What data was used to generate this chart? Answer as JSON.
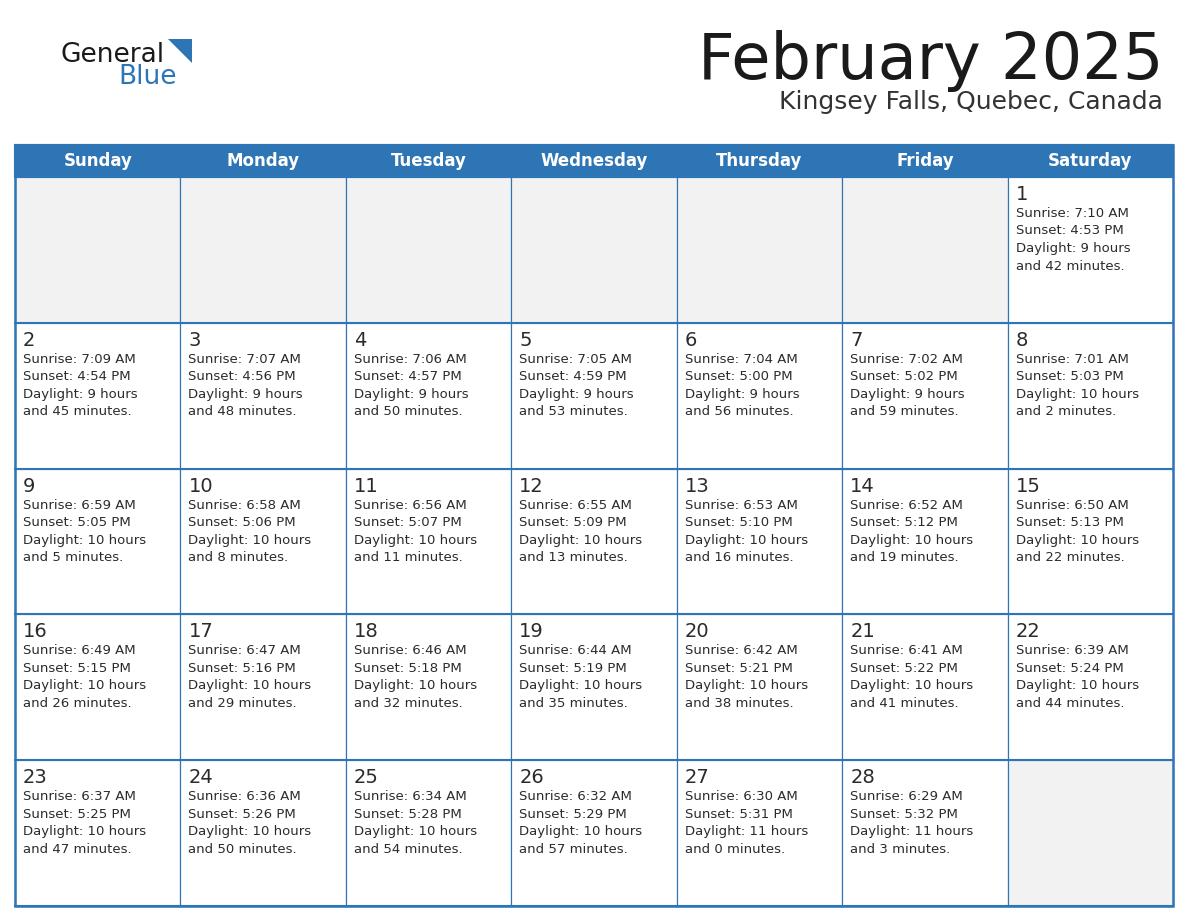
{
  "title": "February 2025",
  "subtitle": "Kingsey Falls, Quebec, Canada",
  "header_color": "#2E75B6",
  "header_text_color": "#FFFFFF",
  "cell_bg_color": "#FFFFFF",
  "empty_row_bg_color": "#F2F2F2",
  "border_color": "#2E75B6",
  "day_number_color": "#2B2B2B",
  "info_text_color": "#2B2B2B",
  "days_of_week": [
    "Sunday",
    "Monday",
    "Tuesday",
    "Wednesday",
    "Thursday",
    "Friday",
    "Saturday"
  ],
  "title_color": "#1a1a1a",
  "subtitle_color": "#333333",
  "logo_general_color": "#1a1a1a",
  "logo_blue_color": "#2E75B6",
  "calendar_data": [
    [
      null,
      null,
      null,
      null,
      null,
      null,
      {
        "day": 1,
        "sunrise": "7:10 AM",
        "sunset": "4:53 PM",
        "daylight": "9 hours\nand 42 minutes."
      }
    ],
    [
      {
        "day": 2,
        "sunrise": "7:09 AM",
        "sunset": "4:54 PM",
        "daylight": "9 hours\nand 45 minutes."
      },
      {
        "day": 3,
        "sunrise": "7:07 AM",
        "sunset": "4:56 PM",
        "daylight": "9 hours\nand 48 minutes."
      },
      {
        "day": 4,
        "sunrise": "7:06 AM",
        "sunset": "4:57 PM",
        "daylight": "9 hours\nand 50 minutes."
      },
      {
        "day": 5,
        "sunrise": "7:05 AM",
        "sunset": "4:59 PM",
        "daylight": "9 hours\nand 53 minutes."
      },
      {
        "day": 6,
        "sunrise": "7:04 AM",
        "sunset": "5:00 PM",
        "daylight": "9 hours\nand 56 minutes."
      },
      {
        "day": 7,
        "sunrise": "7:02 AM",
        "sunset": "5:02 PM",
        "daylight": "9 hours\nand 59 minutes."
      },
      {
        "day": 8,
        "sunrise": "7:01 AM",
        "sunset": "5:03 PM",
        "daylight": "10 hours\nand 2 minutes."
      }
    ],
    [
      {
        "day": 9,
        "sunrise": "6:59 AM",
        "sunset": "5:05 PM",
        "daylight": "10 hours\nand 5 minutes."
      },
      {
        "day": 10,
        "sunrise": "6:58 AM",
        "sunset": "5:06 PM",
        "daylight": "10 hours\nand 8 minutes."
      },
      {
        "day": 11,
        "sunrise": "6:56 AM",
        "sunset": "5:07 PM",
        "daylight": "10 hours\nand 11 minutes."
      },
      {
        "day": 12,
        "sunrise": "6:55 AM",
        "sunset": "5:09 PM",
        "daylight": "10 hours\nand 13 minutes."
      },
      {
        "day": 13,
        "sunrise": "6:53 AM",
        "sunset": "5:10 PM",
        "daylight": "10 hours\nand 16 minutes."
      },
      {
        "day": 14,
        "sunrise": "6:52 AM",
        "sunset": "5:12 PM",
        "daylight": "10 hours\nand 19 minutes."
      },
      {
        "day": 15,
        "sunrise": "6:50 AM",
        "sunset": "5:13 PM",
        "daylight": "10 hours\nand 22 minutes."
      }
    ],
    [
      {
        "day": 16,
        "sunrise": "6:49 AM",
        "sunset": "5:15 PM",
        "daylight": "10 hours\nand 26 minutes."
      },
      {
        "day": 17,
        "sunrise": "6:47 AM",
        "sunset": "5:16 PM",
        "daylight": "10 hours\nand 29 minutes."
      },
      {
        "day": 18,
        "sunrise": "6:46 AM",
        "sunset": "5:18 PM",
        "daylight": "10 hours\nand 32 minutes."
      },
      {
        "day": 19,
        "sunrise": "6:44 AM",
        "sunset": "5:19 PM",
        "daylight": "10 hours\nand 35 minutes."
      },
      {
        "day": 20,
        "sunrise": "6:42 AM",
        "sunset": "5:21 PM",
        "daylight": "10 hours\nand 38 minutes."
      },
      {
        "day": 21,
        "sunrise": "6:41 AM",
        "sunset": "5:22 PM",
        "daylight": "10 hours\nand 41 minutes."
      },
      {
        "day": 22,
        "sunrise": "6:39 AM",
        "sunset": "5:24 PM",
        "daylight": "10 hours\nand 44 minutes."
      }
    ],
    [
      {
        "day": 23,
        "sunrise": "6:37 AM",
        "sunset": "5:25 PM",
        "daylight": "10 hours\nand 47 minutes."
      },
      {
        "day": 24,
        "sunrise": "6:36 AM",
        "sunset": "5:26 PM",
        "daylight": "10 hours\nand 50 minutes."
      },
      {
        "day": 25,
        "sunrise": "6:34 AM",
        "sunset": "5:28 PM",
        "daylight": "10 hours\nand 54 minutes."
      },
      {
        "day": 26,
        "sunrise": "6:32 AM",
        "sunset": "5:29 PM",
        "daylight": "10 hours\nand 57 minutes."
      },
      {
        "day": 27,
        "sunrise": "6:30 AM",
        "sunset": "5:31 PM",
        "daylight": "11 hours\nand 0 minutes."
      },
      {
        "day": 28,
        "sunrise": "6:29 AM",
        "sunset": "5:32 PM",
        "daylight": "11 hours\nand 3 minutes."
      },
      null
    ]
  ],
  "empty_rows": [
    0,
    4
  ]
}
